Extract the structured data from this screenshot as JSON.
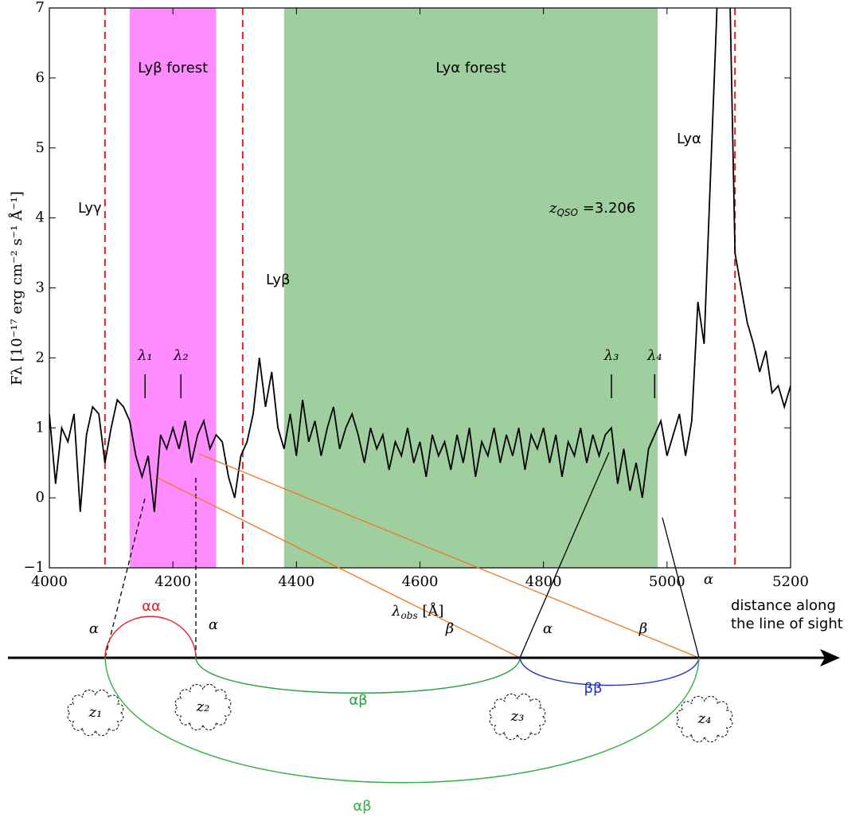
{
  "chart_data": {
    "type": "line",
    "x": [
      4000,
      4010,
      4020,
      4030,
      4040,
      4050,
      4060,
      4070,
      4080,
      4090,
      4100,
      4110,
      4120,
      4130,
      4140,
      4150,
      4160,
      4170,
      4180,
      4190,
      4200,
      4210,
      4220,
      4230,
      4240,
      4250,
      4260,
      4270,
      4280,
      4290,
      4300,
      4310,
      4320,
      4330,
      4340,
      4350,
      4360,
      4370,
      4380,
      4390,
      4400,
      4410,
      4420,
      4430,
      4440,
      4450,
      4460,
      4470,
      4480,
      4490,
      4500,
      4510,
      4520,
      4530,
      4540,
      4550,
      4560,
      4570,
      4580,
      4590,
      4600,
      4610,
      4620,
      4630,
      4640,
      4650,
      4660,
      4670,
      4680,
      4690,
      4700,
      4710,
      4720,
      4730,
      4740,
      4750,
      4760,
      4770,
      4780,
      4790,
      4800,
      4810,
      4820,
      4830,
      4840,
      4850,
      4860,
      4870,
      4880,
      4890,
      4900,
      4910,
      4920,
      4930,
      4940,
      4950,
      4960,
      4970,
      4980,
      4990,
      5000,
      5010,
      5020,
      5030,
      5040,
      5050,
      5060,
      5070,
      5080,
      5090,
      5100,
      5110,
      5120,
      5130,
      5140,
      5150,
      5160,
      5170,
      5180,
      5190,
      5200
    ],
    "values": [
      1.2,
      0.2,
      1.0,
      0.8,
      1.2,
      -0.2,
      0.9,
      1.3,
      1.2,
      0.5,
      1.0,
      1.4,
      1.3,
      1.1,
      0.6,
      0.3,
      0.6,
      -0.2,
      0.9,
      0.7,
      1.0,
      0.7,
      1.1,
      0.5,
      0.9,
      1.1,
      0.7,
      0.9,
      0.8,
      0.3,
      0.0,
      0.6,
      0.8,
      1.2,
      2.0,
      1.3,
      1.8,
      1.0,
      0.7,
      1.2,
      0.6,
      1.4,
      0.8,
      1.1,
      0.6,
      1.0,
      1.3,
      0.7,
      1.0,
      1.2,
      0.9,
      0.5,
      1.0,
      0.7,
      0.9,
      0.4,
      0.8,
      0.6,
      1.0,
      0.5,
      0.8,
      0.3,
      0.9,
      0.6,
      0.8,
      0.4,
      0.9,
      0.5,
      1.0,
      0.3,
      0.8,
      0.6,
      1.0,
      0.5,
      0.9,
      0.6,
      1.0,
      0.4,
      0.9,
      0.7,
      1.0,
      0.5,
      0.9,
      0.3,
      0.8,
      0.6,
      1.0,
      0.5,
      0.9,
      0.6,
      0.9,
      1.0,
      0.2,
      0.7,
      0.1,
      0.5,
      0.0,
      0.7,
      0.9,
      1.1,
      0.6,
      0.9,
      1.2,
      0.6,
      1.1,
      2.8,
      2.2,
      4.5,
      6.8,
      9.5,
      8.0,
      3.5,
      3.0,
      2.5,
      2.2,
      1.8,
      2.1,
      1.5,
      1.6,
      1.3,
      1.6
    ],
    "color": "#000000",
    "xlim": [
      4000,
      5200
    ],
    "ylim": [
      -1,
      7
    ],
    "xticks": [
      4000,
      4200,
      4400,
      4600,
      4800,
      5000,
      5200
    ],
    "yticks": [
      {
        "value": -1,
        "label": "−1"
      },
      0,
      1,
      2,
      3,
      4,
      5,
      6,
      7
    ],
    "xlabel": {
      "symbol": "λ",
      "subscript": "obs",
      "text": " [Å]"
    },
    "ylabel": "Fλ [10⁻¹⁷ erg cm⁻² s⁻¹ Å⁻¹]",
    "bands": [
      {
        "label": "Lyβ forest",
        "range": [
          4130,
          4270
        ],
        "color": "#ff66ff"
      },
      {
        "label": "Lyα forest",
        "range": [
          4380,
          4985
        ],
        "color": "#7fbf7f"
      }
    ],
    "vlines": [
      4090,
      4313,
      5110
    ],
    "vline_color": "#e02020",
    "line_labels": [
      "Lyγ",
      "Lyβ",
      "Lyα"
    ],
    "redshift": {
      "symbol": "z",
      "subscript": "QSO",
      "text": " =3.206"
    },
    "markers": [
      {
        "label": "λ₁",
        "x": 4155
      },
      {
        "label": "λ₂",
        "x": 4213
      },
      {
        "label": "λ₃",
        "x": 4910
      },
      {
        "label": "λ₄",
        "x": 4980
      }
    ]
  },
  "diagram": {
    "axis_label": [
      "distance along",
      "the line of sight"
    ],
    "nodes": [
      "z₁",
      "z₂",
      "z₃",
      "z₄"
    ],
    "transitions": [
      "α",
      "α",
      "β",
      "α",
      "β",
      "α"
    ],
    "pairs": [
      "αα",
      "αβ",
      "ββ",
      "αβ"
    ]
  }
}
